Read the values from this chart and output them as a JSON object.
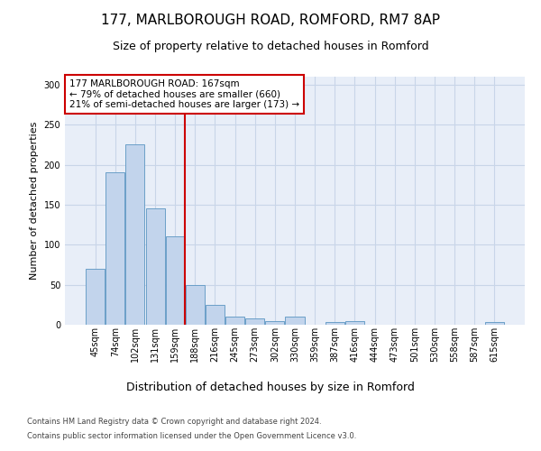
{
  "title1": "177, MARLBOROUGH ROAD, ROMFORD, RM7 8AP",
  "title2": "Size of property relative to detached houses in Romford",
  "xlabel": "Distribution of detached houses by size in Romford",
  "ylabel": "Number of detached properties",
  "footer1": "Contains HM Land Registry data © Crown copyright and database right 2024.",
  "footer2": "Contains public sector information licensed under the Open Government Licence v3.0.",
  "annotation_line1": "177 MARLBOROUGH ROAD: 167sqm",
  "annotation_line2": "← 79% of detached houses are smaller (660)",
  "annotation_line3": "21% of semi-detached houses are larger (173) →",
  "bin_labels": [
    "45sqm",
    "74sqm",
    "102sqm",
    "131sqm",
    "159sqm",
    "188sqm",
    "216sqm",
    "245sqm",
    "273sqm",
    "302sqm",
    "330sqm",
    "359sqm",
    "387sqm",
    "416sqm",
    "444sqm",
    "473sqm",
    "501sqm",
    "530sqm",
    "558sqm",
    "587sqm",
    "615sqm"
  ],
  "bar_values": [
    70,
    190,
    225,
    145,
    110,
    50,
    25,
    10,
    8,
    5,
    10,
    0,
    3,
    4,
    0,
    0,
    0,
    0,
    0,
    0,
    3
  ],
  "bar_color": "#c2d4ec",
  "bar_edge_color": "#6b9fc8",
  "grid_color": "#c8d5e8",
  "background_color": "#e8eef8",
  "red_line_x": 4.5,
  "red_line_color": "#cc0000",
  "annotation_edge_color": "#cc0000",
  "ylim": [
    0,
    310
  ],
  "yticks": [
    0,
    50,
    100,
    150,
    200,
    250,
    300
  ],
  "title1_fontsize": 11,
  "title2_fontsize": 9,
  "ylabel_fontsize": 8,
  "xlabel_fontsize": 9,
  "tick_fontsize": 7,
  "footer_fontsize": 6,
  "annot_fontsize": 7.5
}
